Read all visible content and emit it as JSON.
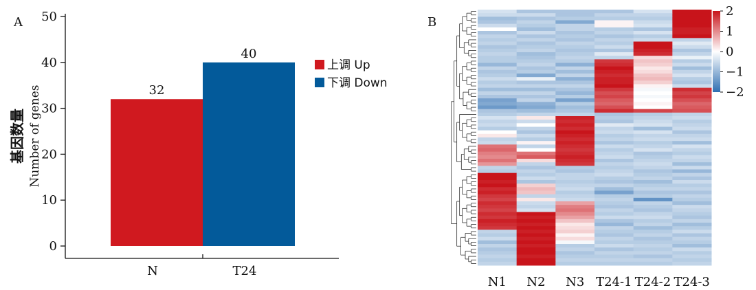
{
  "panel_a": {
    "label": "A",
    "legend_up": "上调  Up",
    "legend_down": "下调  Down"
  },
  "panel_b": {
    "label": "B"
  },
  "chart_data": [
    {
      "type": "bar",
      "categories": [
        "N",
        "T24"
      ],
      "values": [
        32,
        40
      ],
      "data_labels": [
        "32",
        "40"
      ],
      "bar_colors": [
        "#d0191f",
        "#035a9a"
      ],
      "ylabel_cn": "基因数量",
      "ylabel_en": "Number of genes",
      "ylim": [
        0,
        50
      ],
      "yticks": [
        0,
        10,
        20,
        30,
        40,
        50
      ],
      "legend": [
        {
          "label": "上调  Up",
          "color": "#d0191f"
        },
        {
          "label": "下调  Down",
          "color": "#035a9a"
        }
      ],
      "legend_placement": "right"
    },
    {
      "type": "heatmap",
      "columns": [
        "N1",
        "N2",
        "N3",
        "T24-1",
        "T24-2",
        "T24-3"
      ],
      "row_count": 72,
      "value_range": [
        -2,
        2
      ],
      "colorbar_ticks": [
        2,
        1,
        0,
        -1,
        -2
      ],
      "colorbar_tick_labels": [
        "2",
        "1",
        "0",
        "−1",
        "−2"
      ],
      "colormap": {
        "low": "#2f6fb2",
        "mid": "#ffffff",
        "high": "#c8141b"
      },
      "row_dendrogram": true,
      "col_dendrogram": false,
      "values": [
        [
          -0.4,
          -0.8,
          -0.8,
          -0.8,
          -0.4,
          2.0
        ],
        [
          -0.5,
          -0.5,
          -0.8,
          -0.6,
          -0.6,
          2.0
        ],
        [
          -0.9,
          -0.8,
          -0.7,
          -0.7,
          -0.7,
          2.0
        ],
        [
          -0.8,
          -0.6,
          -1.2,
          0.1,
          -0.5,
          2.0
        ],
        [
          -0.5,
          -0.7,
          -0.6,
          0.1,
          -0.4,
          2.0
        ],
        [
          0.0,
          -0.9,
          -0.6,
          -0.7,
          -0.8,
          1.9
        ],
        [
          -0.8,
          -0.5,
          -0.8,
          -0.6,
          -0.4,
          1.9
        ],
        [
          -0.6,
          -0.8,
          -0.7,
          -0.8,
          -0.7,
          2.0
        ],
        [
          -0.7,
          -0.6,
          -0.8,
          -0.6,
          -0.5,
          -0.6
        ],
        [
          -0.6,
          -0.8,
          -0.6,
          -0.7,
          2.0,
          -0.3
        ],
        [
          -0.8,
          -0.7,
          -0.7,
          -0.5,
          2.0,
          -0.5
        ],
        [
          -0.7,
          -0.6,
          -0.8,
          -0.8,
          1.9,
          -0.8
        ],
        [
          -0.6,
          -0.9,
          -0.7,
          -0.3,
          1.8,
          -0.6
        ],
        [
          -0.7,
          -0.8,
          -0.6,
          -0.6,
          0.3,
          -0.2
        ],
        [
          -0.7,
          -0.7,
          -0.7,
          1.7,
          0.5,
          -0.7
        ],
        [
          -1.0,
          -0.6,
          -1.1,
          1.8,
          0.4,
          -0.5
        ],
        [
          -0.6,
          -0.8,
          -0.6,
          2.0,
          0.2,
          -0.9
        ],
        [
          -0.8,
          -0.7,
          -0.9,
          1.9,
          0.3,
          -0.6
        ],
        [
          -0.7,
          -1.2,
          -0.6,
          1.8,
          0.5,
          -0.4
        ],
        [
          -0.5,
          -0.2,
          -1.1,
          1.9,
          0.6,
          -0.7
        ],
        [
          -0.7,
          -0.8,
          -0.8,
          1.9,
          0.4,
          -0.8
        ],
        [
          -0.6,
          -0.6,
          -0.6,
          2.0,
          0.1,
          -0.5
        ],
        [
          -0.9,
          -0.9,
          -0.8,
          1.7,
          -0.1,
          1.8
        ],
        [
          -0.6,
          -0.6,
          -1.0,
          1.5,
          0.0,
          1.6
        ],
        [
          -0.8,
          -0.8,
          -0.7,
          1.6,
          -0.1,
          1.7
        ],
        [
          -1.3,
          -0.6,
          -1.3,
          1.4,
          0.0,
          1.5
        ],
        [
          -1.2,
          -1.1,
          -0.7,
          1.3,
          0.1,
          1.3
        ],
        [
          -1.4,
          -1.2,
          -0.9,
          1.5,
          0.0,
          1.4
        ],
        [
          -0.8,
          -0.9,
          -0.8,
          1.8,
          1.6,
          1.5
        ],
        [
          -0.7,
          -0.6,
          -0.6,
          -0.8,
          -0.7,
          -0.6
        ],
        [
          -0.4,
          0.2,
          1.9,
          -0.7,
          -0.6,
          -0.5
        ],
        [
          -0.6,
          -0.5,
          1.8,
          -0.8,
          -0.5,
          -0.7
        ],
        [
          -0.5,
          0.0,
          1.9,
          -0.3,
          -0.4,
          -0.6
        ],
        [
          -0.7,
          -0.6,
          1.8,
          -0.6,
          -0.9,
          -0.5
        ],
        [
          0.0,
          -0.8,
          2.0,
          -0.5,
          -0.4,
          -0.8
        ],
        [
          0.2,
          -0.5,
          1.9,
          -0.7,
          -0.6,
          -0.6
        ],
        [
          -0.6,
          -0.7,
          1.8,
          -0.6,
          -0.5,
          -0.5
        ],
        [
          -0.5,
          0.1,
          1.9,
          -0.8,
          -0.7,
          -0.9
        ],
        [
          1.2,
          -0.6,
          1.8,
          -0.5,
          -0.6,
          -0.4
        ],
        [
          1.3,
          0.0,
          1.7,
          -0.7,
          -0.4,
          -0.6
        ],
        [
          1.1,
          1.2,
          1.8,
          -0.6,
          -0.8,
          -0.7
        ],
        [
          1.0,
          1.4,
          1.9,
          -0.5,
          -0.7,
          -0.5
        ],
        [
          1.2,
          0.3,
          1.8,
          -0.8,
          -0.6,
          -0.6
        ],
        [
          0.9,
          -0.6,
          1.7,
          -0.6,
          -0.5,
          -0.9
        ],
        [
          -0.6,
          -0.8,
          -0.7,
          -0.7,
          -0.6,
          -0.5
        ],
        [
          -0.7,
          -0.6,
          -0.8,
          -0.6,
          -0.8,
          -1.0
        ],
        [
          2.0,
          -0.7,
          -0.6,
          -0.5,
          -0.7,
          -0.6
        ],
        [
          2.0,
          -0.5,
          -0.6,
          -0.7,
          -0.6,
          -0.8
        ],
        [
          1.9,
          -0.8,
          -0.7,
          -0.8,
          -0.9,
          -0.5
        ],
        [
          2.0,
          0.4,
          -0.6,
          -0.6,
          -0.7,
          -0.7
        ],
        [
          1.8,
          0.6,
          -0.5,
          -0.9,
          -0.6,
          -0.6
        ],
        [
          1.9,
          0.5,
          -0.7,
          -1.3,
          -0.8,
          -0.8
        ],
        [
          1.7,
          -0.6,
          -0.6,
          -0.7,
          -0.7,
          -0.6
        ],
        [
          1.6,
          0.2,
          -0.5,
          -0.6,
          -1.5,
          -0.7
        ],
        [
          1.8,
          -0.5,
          0.8,
          -0.7,
          -0.6,
          -0.9
        ],
        [
          1.7,
          -0.6,
          1.1,
          -0.8,
          -0.7,
          -0.5
        ],
        [
          1.6,
          -0.4,
          1.2,
          -0.6,
          -0.8,
          -0.6
        ],
        [
          1.8,
          2.0,
          1.0,
          -0.7,
          -0.6,
          -0.7
        ],
        [
          1.7,
          1.9,
          0.8,
          -0.5,
          -0.5,
          -0.8
        ],
        [
          1.9,
          2.0,
          0.5,
          -0.8,
          -0.7,
          -0.6
        ],
        [
          1.8,
          1.9,
          0.2,
          -1.0,
          -0.6,
          -0.9
        ],
        [
          1.7,
          2.0,
          0.3,
          -0.6,
          -0.9,
          -0.7
        ],
        [
          -0.6,
          1.9,
          0.4,
          -0.7,
          -0.7,
          -0.5
        ],
        [
          -0.7,
          2.0,
          0.1,
          -0.8,
          -0.6,
          -0.8
        ],
        [
          -0.5,
          1.9,
          0.3,
          -0.6,
          -0.8,
          -0.6
        ],
        [
          -0.9,
          2.0,
          -0.1,
          -0.7,
          -0.7,
          -0.7
        ],
        [
          -0.6,
          1.9,
          -0.7,
          -0.5,
          -0.6,
          -0.9
        ],
        [
          -0.8,
          2.0,
          -0.6,
          -0.8,
          -0.7,
          -0.5
        ],
        [
          -0.7,
          2.0,
          -0.8,
          -0.6,
          -0.6,
          -0.7
        ],
        [
          -0.6,
          1.9,
          -0.7,
          -0.7,
          -0.8,
          -0.6
        ],
        [
          -0.7,
          2.0,
          -0.6,
          -0.6,
          -0.6,
          -0.7
        ],
        [
          -0.6,
          2.0,
          -0.7,
          -0.7,
          -0.7,
          -0.6
        ]
      ]
    }
  ]
}
